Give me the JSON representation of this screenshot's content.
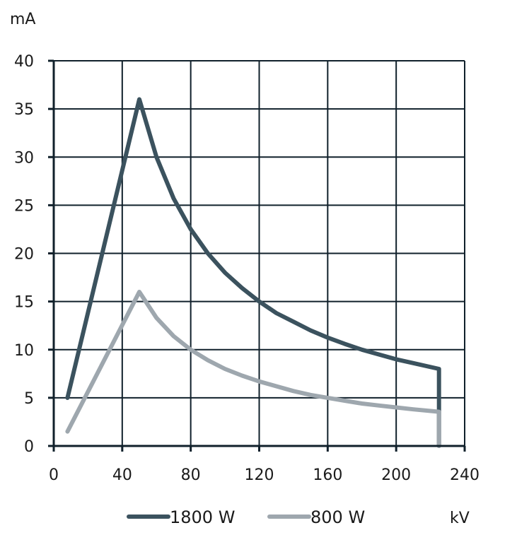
{
  "chart_data": {
    "type": "line",
    "title": "",
    "xlabel": "kV",
    "ylabel": "mA",
    "xlim": [
      0,
      240
    ],
    "ylim": [
      0,
      40
    ],
    "x_ticks": [
      0,
      40,
      80,
      120,
      160,
      200,
      240
    ],
    "y_ticks": [
      0,
      5,
      10,
      15,
      20,
      25,
      30,
      35,
      40
    ],
    "x_tick_labels": [
      "0",
      "40",
      "80",
      "120",
      "160",
      "200",
      "240"
    ],
    "y_tick_labels": [
      "0",
      "5",
      "10",
      "15",
      "20",
      "25",
      "30",
      "35",
      "40"
    ],
    "grid": true,
    "legend_position": "bottom",
    "series": [
      {
        "name": "1800 W",
        "color": "#3b525e",
        "x": [
          8,
          50,
          60,
          70,
          80,
          90,
          100,
          110,
          120,
          130,
          140,
          150,
          160,
          170,
          180,
          190,
          200,
          210,
          225,
          225
        ],
        "y": [
          5,
          36,
          30,
          25.7,
          22.5,
          20,
          18,
          16.4,
          15,
          13.8,
          12.9,
          12,
          11.25,
          10.6,
          10,
          9.5,
          9,
          8.6,
          8,
          0
        ]
      },
      {
        "name": "800 W",
        "color": "#9ea7ae",
        "x": [
          8,
          50,
          60,
          70,
          80,
          90,
          100,
          110,
          120,
          130,
          140,
          150,
          160,
          170,
          180,
          190,
          200,
          210,
          225,
          225
        ],
        "y": [
          1.5,
          16,
          13.3,
          11.4,
          10,
          8.9,
          8,
          7.3,
          6.7,
          6.2,
          5.7,
          5.3,
          5,
          4.7,
          4.4,
          4.2,
          4,
          3.8,
          3.55,
          0
        ]
      }
    ]
  }
}
